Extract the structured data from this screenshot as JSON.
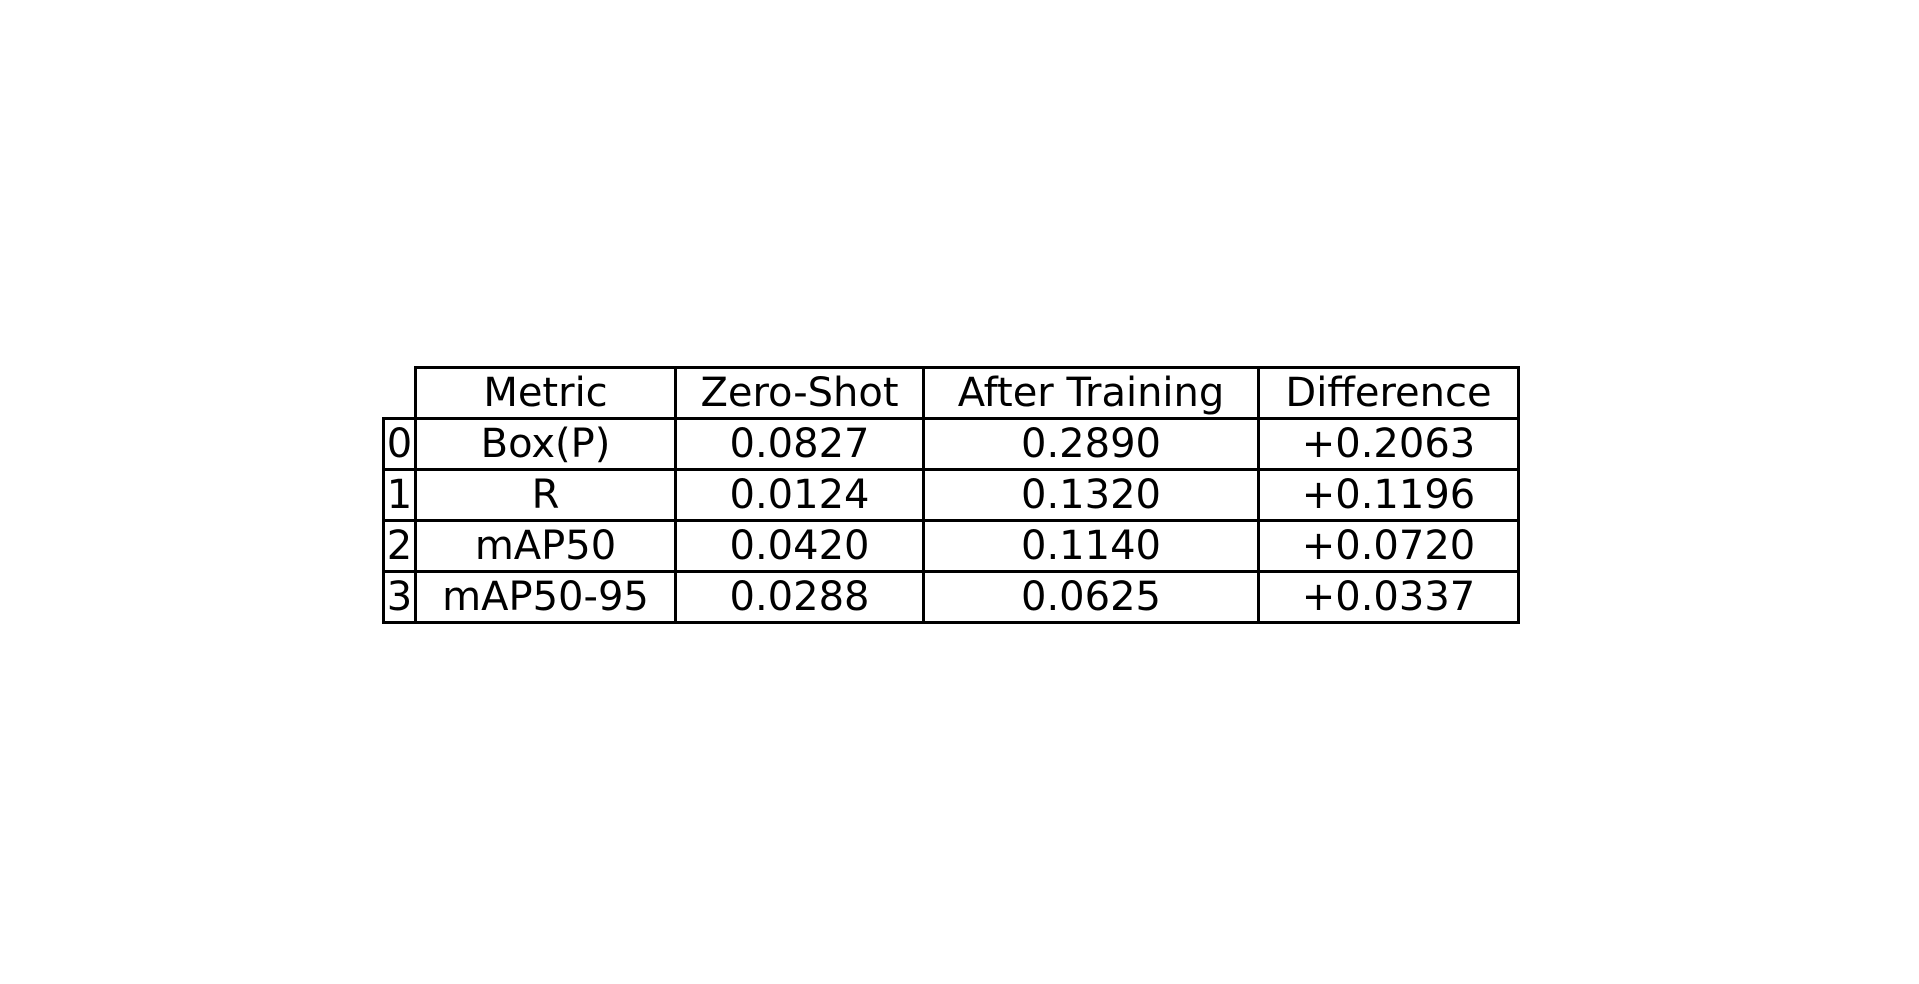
{
  "chart_data": {
    "type": "table",
    "columns": [
      "Metric",
      "Zero-Shot",
      "After Training",
      "Difference"
    ],
    "index": [
      "0",
      "1",
      "2",
      "3"
    ],
    "rows": [
      [
        "Box(P)",
        "0.0827",
        "0.2890",
        "+0.2063"
      ],
      [
        "R",
        "0.0124",
        "0.1320",
        "+0.1196"
      ],
      [
        "mAP50",
        "0.0420",
        "0.1140",
        "+0.0720"
      ],
      [
        "mAP50-95",
        "0.0288",
        "0.0625",
        "+0.0337"
      ]
    ]
  }
}
